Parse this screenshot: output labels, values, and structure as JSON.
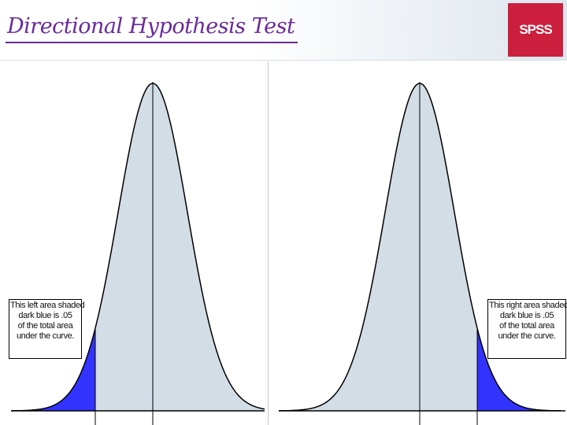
{
  "slide": {
    "title": "Directional Hypothesis Test",
    "logo_text": "SPSS"
  },
  "colors": {
    "title": "#6a2a9a",
    "logo_bg": "#cc1f3d",
    "curve_fill": "#d3dde6",
    "tail_fill": "#3333ff"
  },
  "left_panel": {
    "tail": "left",
    "note_lines": [
      "This left area shaded",
      "dark blue is .05",
      "of the total area",
      "under the curve."
    ]
  },
  "right_panel": {
    "tail": "right",
    "note_lines": [
      "This right area shaded",
      "dark blue is .05",
      "of the total area",
      "under the curve."
    ]
  }
}
